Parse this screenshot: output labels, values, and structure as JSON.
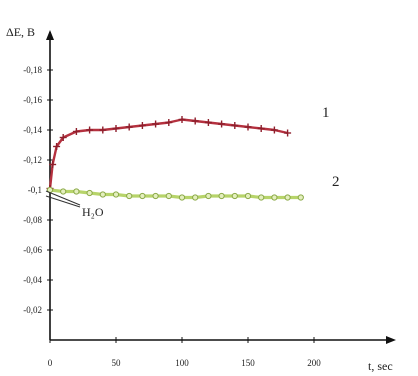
{
  "chart_data": {
    "type": "line",
    "xlabel": "t, sec",
    "ylabel": "ΔE, B",
    "xlim": [
      0,
      250
    ],
    "ylim": [
      0,
      0.2
    ],
    "xticks": [
      0,
      50,
      100,
      150,
      200
    ],
    "xtick_labels": [
      "0",
      "50",
      "100",
      "150",
      "200"
    ],
    "yticks": [
      0.02,
      0.04,
      0.06,
      0.08,
      0.1,
      0.12,
      0.14,
      0.16,
      0.18
    ],
    "ytick_labels": [
      "-0,02",
      "-0,04",
      "-0,06",
      "-0,08",
      "-0,1",
      "-0,12",
      "-0,14",
      "-0,16",
      "-0,18"
    ],
    "grid": false,
    "annotation": "H₂O",
    "series": [
      {
        "name": "1",
        "color": "#b5313f",
        "x": [
          0,
          2,
          5,
          10,
          20,
          30,
          40,
          50,
          60,
          70,
          80,
          90,
          100,
          110,
          120,
          130,
          140,
          150,
          160,
          170,
          180
        ],
        "y": [
          0.101,
          0.117,
          0.129,
          0.135,
          0.139,
          0.14,
          0.14,
          0.141,
          0.142,
          0.143,
          0.144,
          0.145,
          0.147,
          0.146,
          0.145,
          0.144,
          0.143,
          0.142,
          0.141,
          0.14,
          0.138
        ]
      },
      {
        "name": "2",
        "color": "#b7d46a",
        "x": [
          0,
          10,
          20,
          30,
          40,
          50,
          60,
          70,
          80,
          90,
          100,
          110,
          120,
          130,
          140,
          150,
          160,
          170,
          180,
          190
        ],
        "y": [
          0.1,
          0.099,
          0.099,
          0.098,
          0.097,
          0.097,
          0.096,
          0.096,
          0.096,
          0.096,
          0.095,
          0.095,
          0.096,
          0.096,
          0.096,
          0.096,
          0.095,
          0.095,
          0.095,
          0.095
        ]
      }
    ]
  }
}
